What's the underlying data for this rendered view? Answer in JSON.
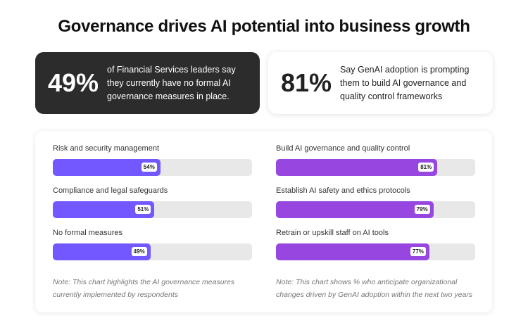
{
  "title": "Governance drives AI potential into business growth",
  "stats": [
    {
      "value": "49%",
      "text": "of Financial Services leaders say they currently have no formal AI governance measures in place."
    },
    {
      "value": "81%",
      "text": "Say GenAI adoption is prompting them to build AI governance and quality control frameworks"
    }
  ],
  "colors": {
    "left_bar": "#7357ff",
    "right_bar": "#9747e0",
    "track": "#e8e8e8",
    "dark_card": "#2c2c2c"
  },
  "chart_data": [
    {
      "type": "bar",
      "orientation": "horizontal",
      "xlim": [
        0,
        100
      ],
      "categories": [
        "Risk and security management",
        "Compliance and legal safeguards",
        "No formal measures"
      ],
      "values": [
        54,
        51,
        49
      ],
      "labels": [
        "54%",
        "51%",
        "49%"
      ],
      "note": "Note: This chart highlights the AI governance measures currently implemented by respondents"
    },
    {
      "type": "bar",
      "orientation": "horizontal",
      "xlim": [
        0,
        100
      ],
      "categories": [
        "Build AI governance and quality control",
        "Establish AI safety and ethics protocols",
        "Retrain or upskill staff on AI tools"
      ],
      "values": [
        81,
        79,
        77
      ],
      "labels": [
        "81%",
        "79%",
        "77%"
      ],
      "note": "Note: This chart shows % who anticipate organizational changes driven by GenAI adoption within the next two years"
    }
  ]
}
